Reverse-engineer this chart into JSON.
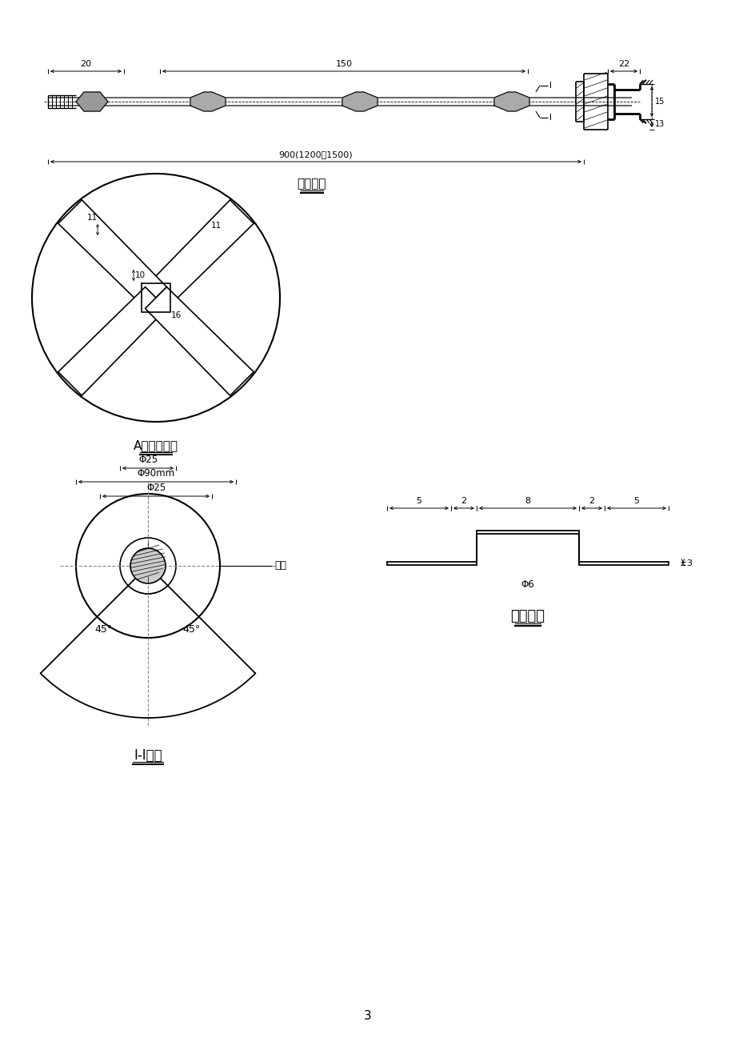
{
  "bg_color": "#ffffff",
  "line_color": "#000000",
  "gray_color": "#888888",
  "title1": "锚杆详图",
  "title2": "A节点大样图",
  "title3": "I-I剖面",
  "title4": "支架详图",
  "page_num": "3"
}
